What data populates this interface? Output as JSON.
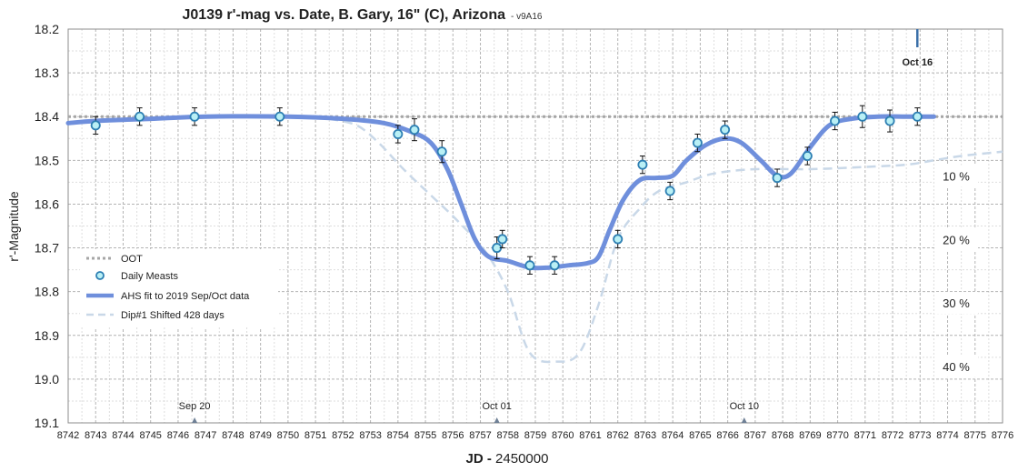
{
  "chart_data": {
    "type": "line",
    "title": "J0139 r'-mag vs. Date, B. Gary, 16\" (C), Arizona",
    "version": "- v9A16",
    "xlabel_bold": "JD -",
    "xlabel_rest": " 2450000",
    "ylabel": "r'-Magnitude",
    "xlim": [
      8742,
      8776
    ],
    "ylim": [
      18.2,
      19.1
    ],
    "y_inverted": true,
    "grid": true,
    "x_ticks": [
      8742,
      8743,
      8744,
      8745,
      8746,
      8747,
      8748,
      8749,
      8750,
      8751,
      8752,
      8753,
      8754,
      8755,
      8756,
      8757,
      8758,
      8759,
      8760,
      8761,
      8762,
      8763,
      8764,
      8765,
      8766,
      8767,
      8768,
      8769,
      8770,
      8771,
      8772,
      8773,
      8774,
      8775,
      8776
    ],
    "y_ticks": [
      "18.2",
      "18.3",
      "18.4",
      "18.5",
      "18.6",
      "18.7",
      "18.8",
      "18.9",
      "19.0",
      "19.1"
    ],
    "legend_position": "bottom-left",
    "legend": [
      "OOT",
      "Daily Measts",
      "AHS fit to 2019 Sep/Oct data",
      "Dip#1 Shifted 428 days"
    ],
    "oot_level": 18.4,
    "series": [
      {
        "name": "Daily Measts",
        "kind": "points",
        "x": [
          8743.0,
          8744.6,
          8746.6,
          8749.7,
          8754.0,
          8754.6,
          8755.6,
          8757.6,
          8757.8,
          8758.8,
          8759.7,
          8762.0,
          8762.9,
          8763.9,
          8764.9,
          8765.9,
          8767.8,
          8768.9,
          8769.9,
          8770.9,
          8771.9,
          8772.9
        ],
        "y": [
          18.42,
          18.4,
          18.4,
          18.4,
          18.44,
          18.43,
          18.48,
          18.7,
          18.68,
          18.74,
          18.74,
          18.68,
          18.51,
          18.57,
          18.46,
          18.43,
          18.54,
          18.49,
          18.41,
          18.4,
          18.41,
          18.4
        ],
        "err": [
          0.02,
          0.02,
          0.02,
          0.02,
          0.02,
          0.025,
          0.025,
          0.025,
          0.02,
          0.02,
          0.02,
          0.02,
          0.02,
          0.02,
          0.02,
          0.02,
          0.02,
          0.02,
          0.02,
          0.025,
          0.025,
          0.02
        ]
      },
      {
        "name": "AHS fit to 2019 Sep/Oct data",
        "kind": "line",
        "x": [
          8742.0,
          8743.0,
          8745.0,
          8747.0,
          8750.0,
          8752.0,
          8753.5,
          8754.5,
          8755.2,
          8755.8,
          8756.3,
          8756.8,
          8757.3,
          8758.0,
          8758.8,
          8759.5,
          8760.2,
          8760.9,
          8761.3,
          8761.7,
          8762.2,
          8762.8,
          8763.4,
          8764.0,
          8764.5,
          8765.2,
          8765.9,
          8766.5,
          8767.2,
          8767.8,
          8768.3,
          8769.0,
          8769.7,
          8770.5,
          8771.5,
          8772.5,
          8773.5
        ],
        "y": [
          18.415,
          18.41,
          18.405,
          18.4,
          18.4,
          18.405,
          18.415,
          18.435,
          18.46,
          18.52,
          18.6,
          18.68,
          18.72,
          18.73,
          18.745,
          18.745,
          18.74,
          18.735,
          18.72,
          18.66,
          18.59,
          18.545,
          18.54,
          18.535,
          18.5,
          18.465,
          18.45,
          18.46,
          18.5,
          18.535,
          18.53,
          18.47,
          18.42,
          18.405,
          18.4,
          18.4,
          18.4
        ]
      },
      {
        "name": "Dip#1 Shifted 428 days",
        "kind": "dashed",
        "x": [
          8751.5,
          8752.5,
          8753.3,
          8754.2,
          8755.2,
          8756.2,
          8757.2,
          8758.0,
          8758.8,
          8759.8,
          8760.6,
          8761.3,
          8762.0,
          8762.8,
          8763.5,
          8764.5,
          8765.5,
          8767.0,
          8769.0,
          8771.0,
          8772.5,
          8773.5,
          8774.5,
          8776.0
        ],
        "y": [
          18.405,
          18.42,
          18.46,
          18.52,
          18.58,
          18.64,
          18.71,
          18.8,
          18.94,
          18.96,
          18.94,
          18.83,
          18.68,
          18.61,
          18.57,
          18.55,
          18.53,
          18.52,
          18.52,
          18.515,
          18.51,
          18.5,
          18.49,
          18.48
        ]
      }
    ],
    "date_markers": [
      {
        "label": "Sep 20",
        "x": 8746.6
      },
      {
        "label": "Oct 01",
        "x": 8757.6
      },
      {
        "label": "Oct 10",
        "x": 8766.6
      }
    ],
    "current_marker": {
      "label": "Oct 16",
      "x": 8772.9
    },
    "percent_labels": [
      {
        "label": "10 %",
        "y": 18.54
      },
      {
        "label": "20 %",
        "y": 18.685
      },
      {
        "label": "30 %",
        "y": 18.83
      },
      {
        "label": "40 %",
        "y": 18.975
      }
    ],
    "colors": {
      "fit": "#6f8fdc",
      "dip": "#c9d8e8",
      "oot": "#a6a6a6",
      "point_fill": "#b9f0f5",
      "point_edge": "#2d7fb3",
      "marker_tick": "#6f8096",
      "current": "#3a6fa8",
      "current_label": "#2c5a94"
    }
  }
}
